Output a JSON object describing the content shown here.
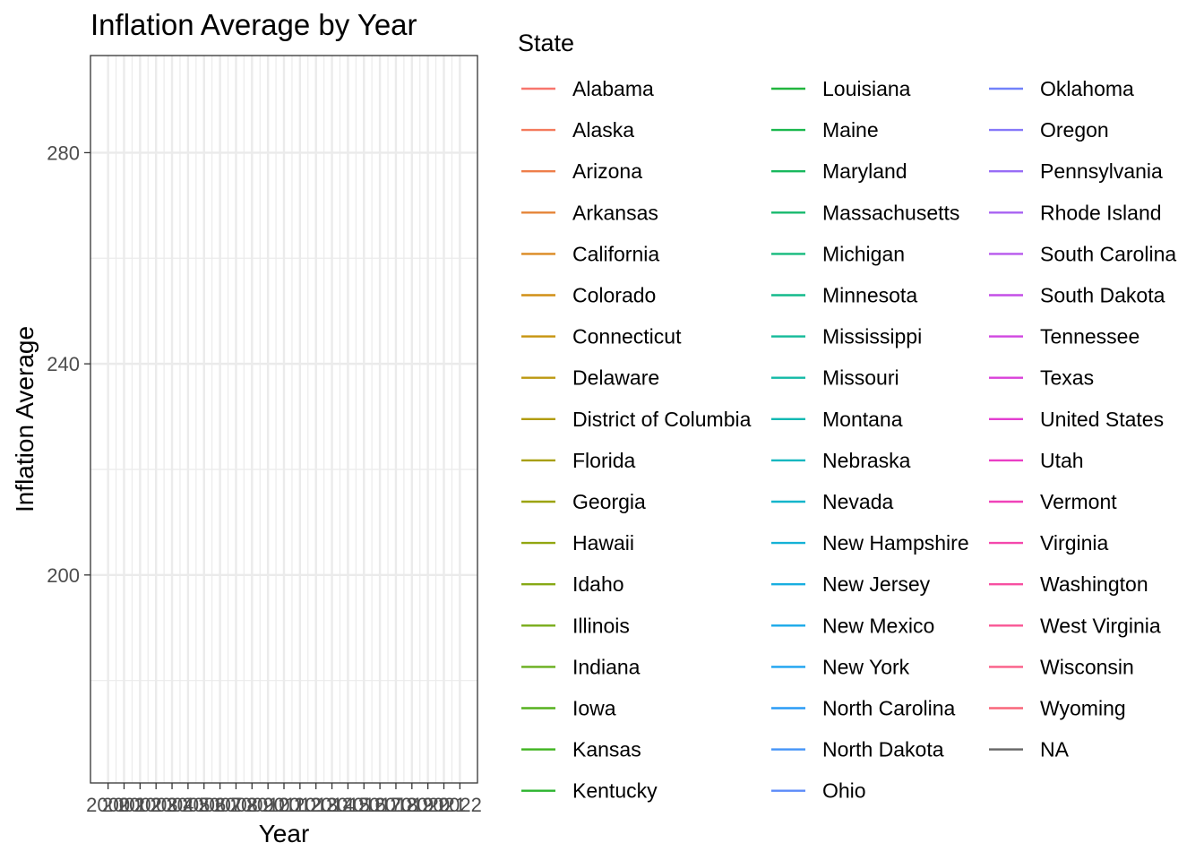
{
  "chart_data": {
    "type": "line",
    "title": "Inflation Average by Year",
    "xlabel": "Year",
    "ylabel": "Inflation Average",
    "x_ticks": [
      "2000",
      "2001",
      "2002",
      "2003",
      "2004",
      "2005",
      "2006",
      "2007",
      "2008",
      "2009",
      "2010",
      "2011",
      "2012",
      "2013",
      "2014",
      "2015",
      "2016",
      "2017",
      "2018",
      "2019",
      "2020",
      "2021",
      "2022"
    ],
    "xlim": [
      2000,
      2022
    ],
    "y_ticks": [
      200,
      240,
      280
    ],
    "ylim": [
      160.6,
      298.4
    ],
    "grid": true,
    "legend_position": "right",
    "legend_title": "State",
    "series": [
      {
        "name": "Alabama",
        "color": "#F8766D",
        "values": []
      },
      {
        "name": "Alaska",
        "color": "#F47A5C",
        "values": []
      },
      {
        "name": "Arizona",
        "color": "#EE7E4A",
        "values": []
      },
      {
        "name": "Arkansas",
        "color": "#E58437",
        "values": []
      },
      {
        "name": "California",
        "color": "#DB8A22",
        "values": []
      },
      {
        "name": "Colorado",
        "color": "#D18F16",
        "values": []
      },
      {
        "name": "Connecticut",
        "color": "#C6940F",
        "values": []
      },
      {
        "name": "Delaware",
        "color": "#BC9811",
        "values": []
      },
      {
        "name": "District of Columbia",
        "color": "#B19C0D",
        "values": []
      },
      {
        "name": "Florida",
        "color": "#A89F0C",
        "values": []
      },
      {
        "name": "Georgia",
        "color": "#9CA30E",
        "values": []
      },
      {
        "name": "Hawaii",
        "color": "#92A611",
        "values": []
      },
      {
        "name": "Idaho",
        "color": "#86A915",
        "values": []
      },
      {
        "name": "Illinois",
        "color": "#78AC19",
        "values": []
      },
      {
        "name": "Indiana",
        "color": "#68AE1B",
        "values": []
      },
      {
        "name": "Iowa",
        "color": "#56B11E",
        "values": []
      },
      {
        "name": "Kansas",
        "color": "#3EB31F",
        "values": []
      },
      {
        "name": "Kentucky",
        "color": "#2DB52F",
        "values": []
      },
      {
        "name": "Louisiana",
        "color": "#22B63F",
        "values": []
      },
      {
        "name": "Maine",
        "color": "#1AB84E",
        "values": []
      },
      {
        "name": "Maryland",
        "color": "#18B85D",
        "values": []
      },
      {
        "name": "Massachusetts",
        "color": "#16B96D",
        "values": []
      },
      {
        "name": "Michigan",
        "color": "#15BA7C",
        "values": []
      },
      {
        "name": "Minnesota",
        "color": "#14BA8B",
        "values": []
      },
      {
        "name": "Mississippi",
        "color": "#13BA99",
        "values": []
      },
      {
        "name": "Missouri",
        "color": "#12BAA6",
        "values": []
      },
      {
        "name": "Montana",
        "color": "#12B9B3",
        "values": []
      },
      {
        "name": "Nebraska",
        "color": "#13B7BF",
        "values": []
      },
      {
        "name": "Nevada",
        "color": "#14B5CB",
        "values": []
      },
      {
        "name": "New Hampshire",
        "color": "#15B2D6",
        "values": []
      },
      {
        "name": "New Jersey",
        "color": "#17AEE0",
        "values": []
      },
      {
        "name": "New Mexico",
        "color": "#19A9E9",
        "values": []
      },
      {
        "name": "New York",
        "color": "#1CA3F0",
        "values": []
      },
      {
        "name": "North Carolina",
        "color": "#2A9CF5",
        "values": []
      },
      {
        "name": "North Dakota",
        "color": "#4394F8",
        "values": []
      },
      {
        "name": "Ohio",
        "color": "#5C8BF9",
        "values": []
      },
      {
        "name": "Oklahoma",
        "color": "#7282FA",
        "values": []
      },
      {
        "name": "Oregon",
        "color": "#8678F9",
        "values": []
      },
      {
        "name": "Pennsylvania",
        "color": "#986DF6",
        "values": []
      },
      {
        "name": "Rhode Island",
        "color": "#A862F2",
        "values": []
      },
      {
        "name": "South Carolina",
        "color": "#B758ED",
        "values": []
      },
      {
        "name": "South Dakota",
        "color": "#C44EE7",
        "values": []
      },
      {
        "name": "Tennessee",
        "color": "#D046E1",
        "values": []
      },
      {
        "name": "Texas",
        "color": "#DA41D9",
        "values": []
      },
      {
        "name": "United States",
        "color": "#E33ED0",
        "values": []
      },
      {
        "name": "Utah",
        "color": "#EA3EC5",
        "values": []
      },
      {
        "name": "Vermont",
        "color": "#F042B9",
        "values": []
      },
      {
        "name": "Virginia",
        "color": "#F448AD",
        "values": []
      },
      {
        "name": "Washington",
        "color": "#F74FA1",
        "values": []
      },
      {
        "name": "West Virginia",
        "color": "#F95694",
        "values": []
      },
      {
        "name": "Wisconsin",
        "color": "#FA5E87",
        "values": []
      },
      {
        "name": "Wyoming",
        "color": "#F9667A",
        "values": []
      },
      {
        "name": "NA",
        "color": "#666666",
        "values": []
      }
    ]
  }
}
